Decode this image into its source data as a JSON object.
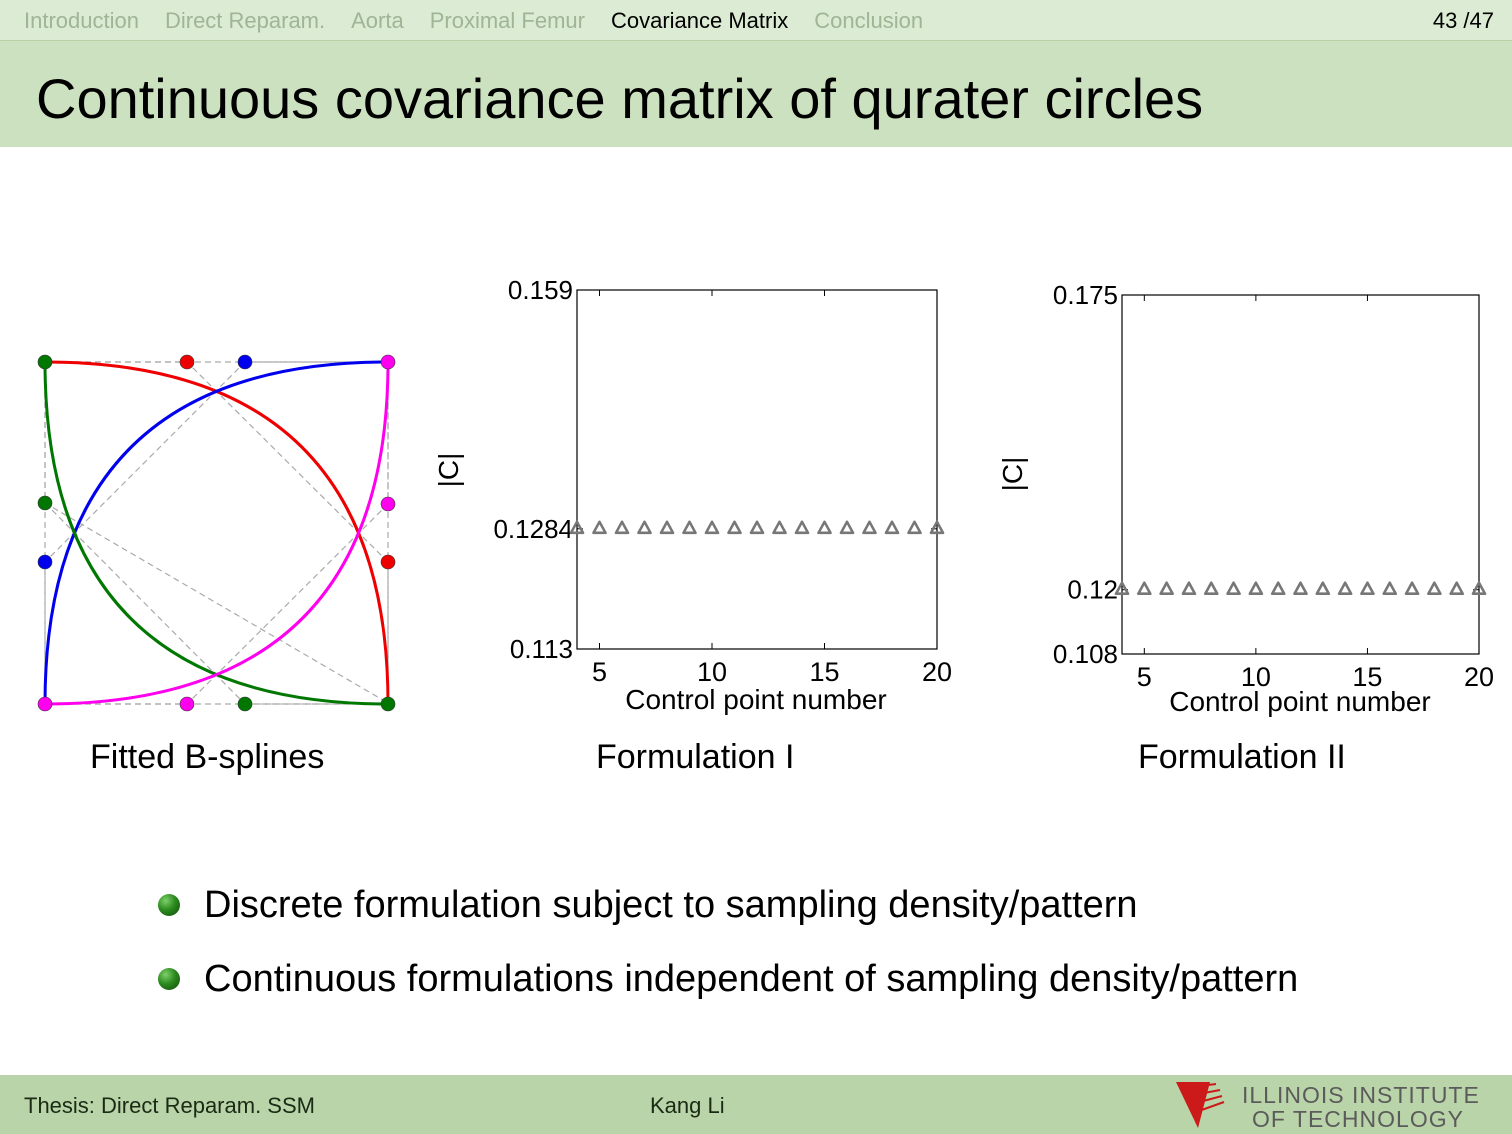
{
  "nav": {
    "items": [
      "Introduction",
      "Direct Reparam.",
      "Aorta",
      "Proximal Femur",
      "Covariance Matrix",
      "Conclusion"
    ],
    "active_index": 4,
    "page": "43 /47"
  },
  "title": "Continuous covariance matrix of qurater circles",
  "captions": {
    "splines": "Fitted B-splines",
    "form1": "Formulation I",
    "form2": "Formulation II"
  },
  "bullets": [
    "Discrete formulation subject to sampling density/pattern",
    "Continuous formulations independent of sampling density/pattern"
  ],
  "footer": {
    "left": "Thesis: Direct Reparam. SSM",
    "center": "Kang Li",
    "logo_line1": "ILLINOIS INSTITUTE",
    "logo_line2": "OF TECHNOLOGY"
  },
  "spline_colors": {
    "red": "#ee0000",
    "blue": "#0000ee",
    "green": "#007700",
    "magenta": "#ff00ee"
  },
  "chart_data": [
    {
      "type": "scatter",
      "xlabel": "Control point number",
      "ylabel": "|C|",
      "xlim": [
        4,
        20
      ],
      "ylim": [
        0.113,
        0.159
      ],
      "xticks": [
        5,
        10,
        15,
        20
      ],
      "yticks": [
        0.113,
        0.1284,
        0.159
      ],
      "ytick_labels": [
        "0.113",
        "0.1284",
        "0.159"
      ],
      "x": [
        4,
        5,
        6,
        7,
        8,
        9,
        10,
        11,
        12,
        13,
        14,
        15,
        16,
        17,
        18,
        19,
        20
      ],
      "y": [
        0.1284,
        0.1284,
        0.1284,
        0.1284,
        0.1284,
        0.1284,
        0.1284,
        0.1284,
        0.1284,
        0.1284,
        0.1284,
        0.1284,
        0.1284,
        0.1284,
        0.1284,
        0.1284,
        0.1284
      ],
      "marker": "triangle",
      "color": "#777777"
    },
    {
      "type": "scatter",
      "xlabel": "Control point number",
      "ylabel": "|C|",
      "xlim": [
        4,
        20
      ],
      "ylim": [
        0.108,
        0.175
      ],
      "xticks": [
        5,
        10,
        15,
        20
      ],
      "yticks": [
        0.108,
        0.12,
        0.175
      ],
      "ytick_labels": [
        "0.108",
        "0.12",
        "0.175"
      ],
      "x": [
        4,
        5,
        6,
        7,
        8,
        9,
        10,
        11,
        12,
        13,
        14,
        15,
        16,
        17,
        18,
        19,
        20
      ],
      "y": [
        0.12,
        0.12,
        0.12,
        0.12,
        0.12,
        0.12,
        0.12,
        0.12,
        0.12,
        0.12,
        0.12,
        0.12,
        0.12,
        0.12,
        0.12,
        0.12,
        0.12
      ],
      "marker": "triangle",
      "color": "#777777"
    }
  ]
}
